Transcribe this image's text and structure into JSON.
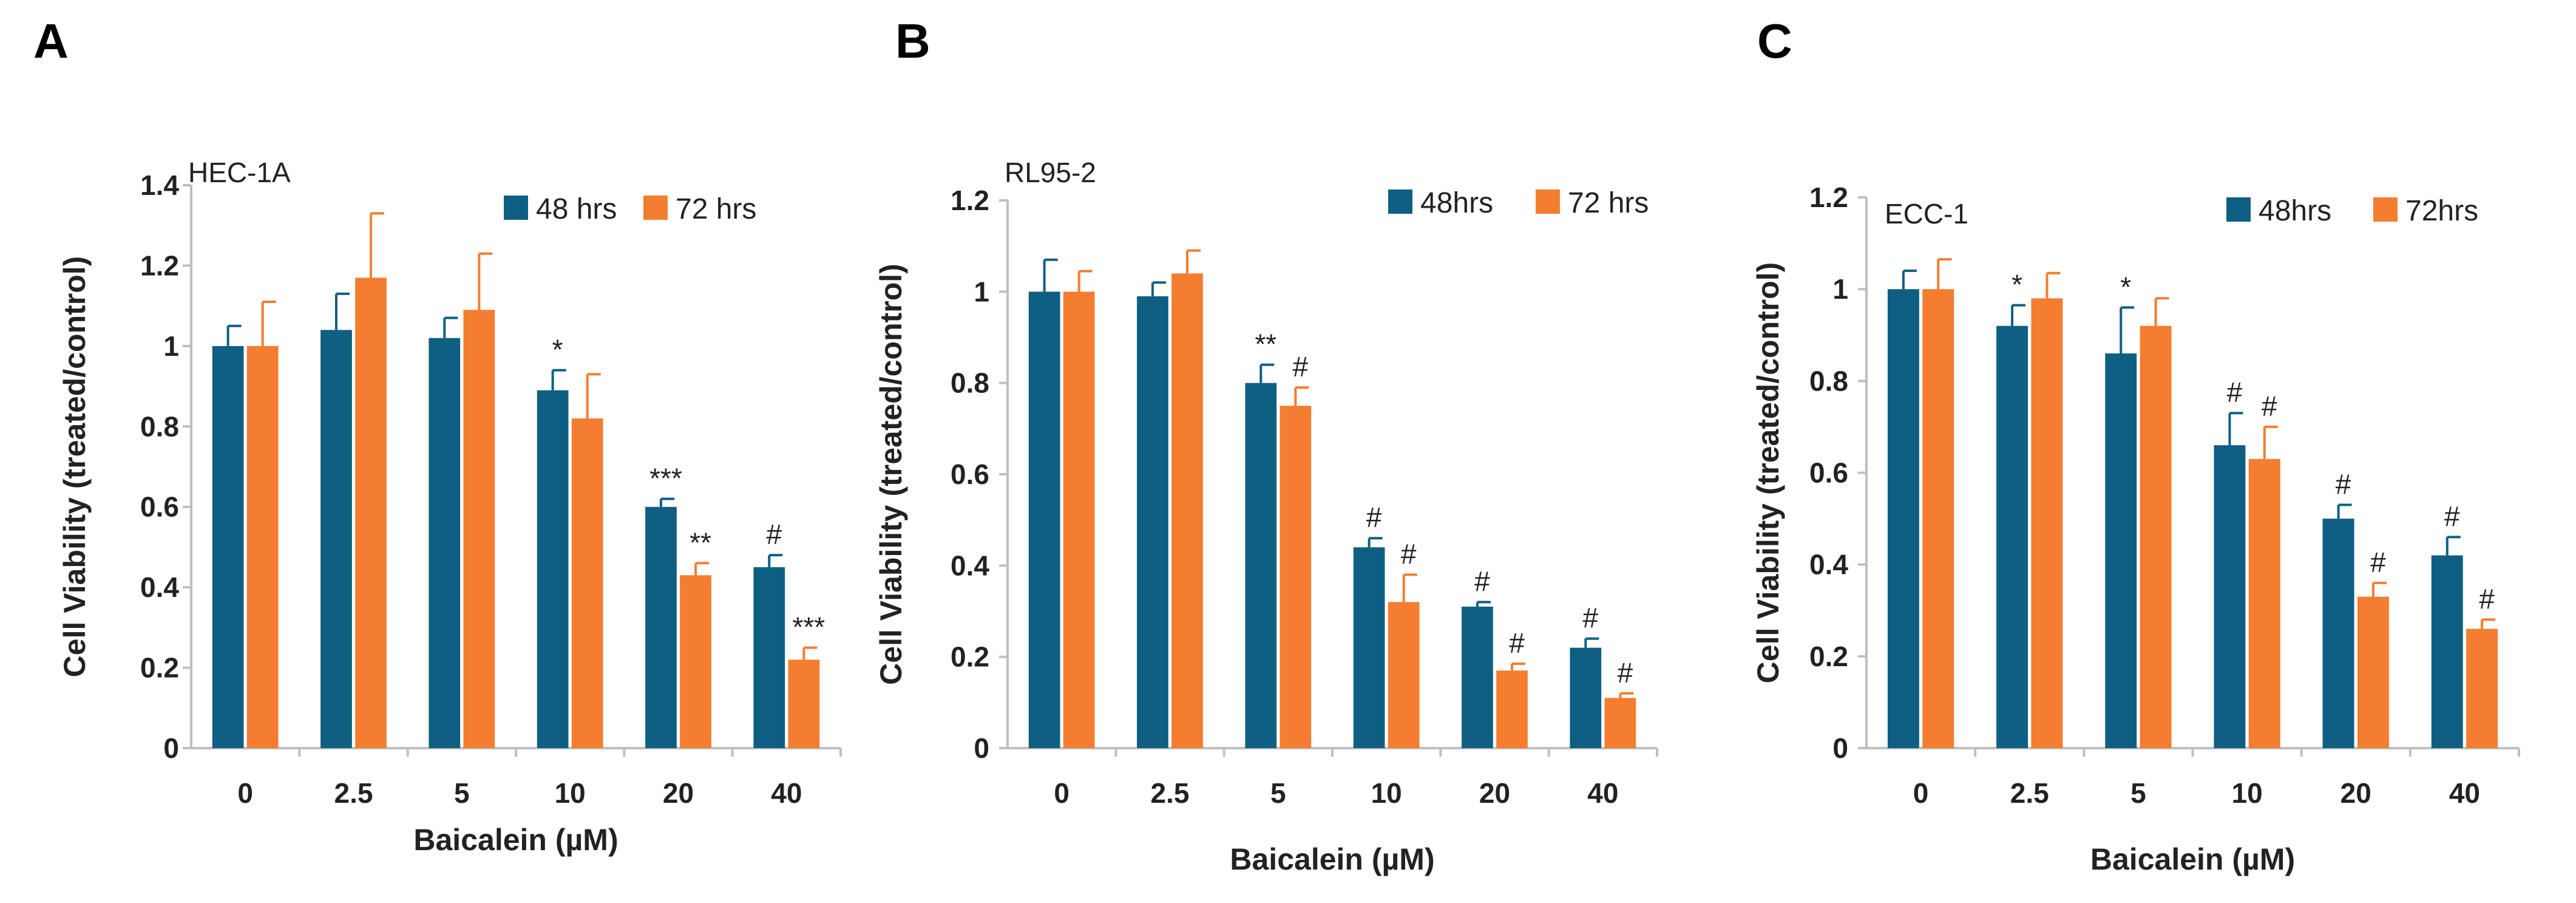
{
  "figure": {
    "panels": [
      "A",
      "B",
      "C"
    ]
  },
  "colors": {
    "h48": "#0e5f82",
    "h72": "#f47d30",
    "axis": "#bfbfbf",
    "text": "#222222"
  },
  "chart_data": [
    {
      "type": "bar",
      "panel": "A",
      "cell_line": "HEC-1A",
      "title": "",
      "xlabel": "Baicalein (µM)",
      "ylabel": "Cell Viability (treated/control)",
      "categories": [
        "0",
        "2.5",
        "5",
        "10",
        "20",
        "40"
      ],
      "ylim": [
        0,
        1.4
      ],
      "yticks": [
        0,
        0.2,
        0.4,
        0.6,
        0.8,
        1,
        1.2,
        1.4
      ],
      "ytick_labels": [
        "0",
        "0.2",
        "0.4",
        "0.6",
        "0.8",
        "1",
        "1.2",
        "1.4"
      ],
      "grid": false,
      "legend_position": "top-right",
      "series": [
        {
          "name": "48 hrs",
          "key": "h48",
          "values": [
            1.0,
            1.04,
            1.02,
            0.89,
            0.6,
            0.45
          ],
          "errors": [
            0.05,
            0.09,
            0.05,
            0.05,
            0.02,
            0.03
          ],
          "significance": [
            "",
            "",
            "",
            "*",
            "***",
            "#"
          ]
        },
        {
          "name": "72 hrs",
          "key": "h72",
          "values": [
            1.0,
            1.17,
            1.09,
            0.82,
            0.43,
            0.22
          ],
          "errors": [
            0.11,
            0.16,
            0.14,
            0.11,
            0.03,
            0.03
          ],
          "significance": [
            "",
            "",
            "",
            "",
            "**",
            "***"
          ]
        }
      ]
    },
    {
      "type": "bar",
      "panel": "B",
      "cell_line": "RL95-2",
      "title": "",
      "xlabel": "Baicalein (µM)",
      "ylabel": "Cell Viability (treated/control)",
      "categories": [
        "0",
        "2.5",
        "5",
        "10",
        "20",
        "40"
      ],
      "ylim": [
        0,
        1.2
      ],
      "yticks": [
        0,
        0.2,
        0.4,
        0.6,
        0.8,
        1,
        1.2
      ],
      "ytick_labels": [
        "0",
        "0.2",
        "0.4",
        "0.6",
        "0.8",
        "1",
        "1.2"
      ],
      "grid": false,
      "legend_position": "top-right",
      "series": [
        {
          "name": "48hrs",
          "key": "h48",
          "values": [
            1.0,
            0.99,
            0.8,
            0.44,
            0.31,
            0.22
          ],
          "errors": [
            0.07,
            0.03,
            0.04,
            0.02,
            0.01,
            0.02
          ],
          "significance": [
            "",
            "",
            "**",
            "#",
            "#",
            "#"
          ]
        },
        {
          "name": "72 hrs",
          "key": "h72",
          "values": [
            1.0,
            1.04,
            0.75,
            0.32,
            0.17,
            0.11
          ],
          "errors": [
            0.045,
            0.05,
            0.04,
            0.06,
            0.015,
            0.01
          ],
          "significance": [
            "",
            "",
            "#",
            "#",
            "#",
            "#"
          ]
        }
      ]
    },
    {
      "type": "bar",
      "panel": "C",
      "cell_line": "ECC-1",
      "title": "",
      "xlabel": "Baicalein (µM)",
      "ylabel": "Cell Viability (treated/control)",
      "categories": [
        "0",
        "2.5",
        "5",
        "10",
        "20",
        "40"
      ],
      "ylim": [
        0,
        1.2
      ],
      "yticks": [
        0,
        0.2,
        0.4,
        0.6,
        0.8,
        1,
        1.2
      ],
      "ytick_labels": [
        "0",
        "0.2",
        "0.4",
        "0.6",
        "0.8",
        "1",
        "1.2"
      ],
      "grid": false,
      "legend_position": "top-right",
      "series": [
        {
          "name": "48hrs",
          "key": "h48",
          "values": [
            1.0,
            0.92,
            0.86,
            0.66,
            0.5,
            0.42
          ],
          "errors": [
            0.04,
            0.045,
            0.1,
            0.07,
            0.03,
            0.04
          ],
          "significance": [
            "",
            "*",
            "*",
            "#",
            "#",
            "#"
          ]
        },
        {
          "name": "72hrs",
          "key": "h72",
          "values": [
            1.0,
            0.98,
            0.92,
            0.63,
            0.33,
            0.26
          ],
          "errors": [
            0.065,
            0.055,
            0.06,
            0.07,
            0.03,
            0.02
          ],
          "significance": [
            "",
            "",
            "",
            "#",
            "#",
            "#"
          ]
        }
      ]
    }
  ]
}
